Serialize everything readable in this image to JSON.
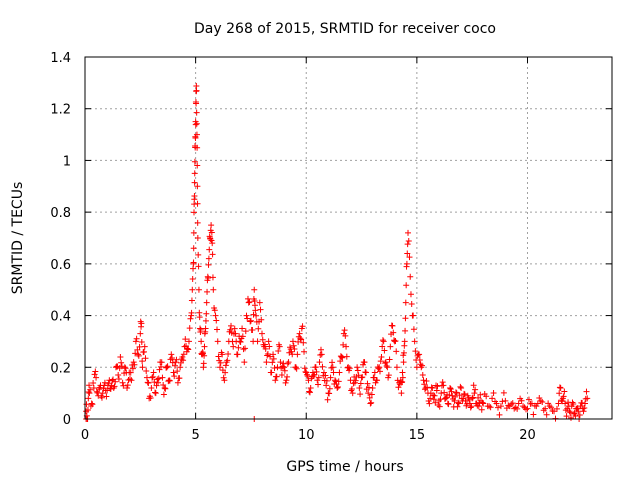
{
  "chart_data": {
    "type": "scatter",
    "title": "Day 268 of 2015, SRMTID for receiver coco",
    "xlabel": "GPS time / hours",
    "ylabel": "SRMTID / TECUs",
    "xlim": [
      0,
      23.82
    ],
    "ylim": [
      0,
      1.4
    ],
    "x_ticks": [
      0,
      5,
      10,
      15,
      20
    ],
    "x_tick_labels": [
      "0",
      "5",
      "10",
      "15",
      "20"
    ],
    "y_ticks": [
      0,
      0.2,
      0.4,
      0.6,
      0.8,
      1.0,
      1.2,
      1.4
    ],
    "y_tick_labels": [
      "0",
      "0.2",
      "0.4",
      "0.6",
      "0.8",
      "1",
      "1.2",
      "1.4"
    ],
    "grid": true,
    "marker": "plus",
    "color": "#ff0000",
    "series": [
      {
        "name": "SRMTID",
        "x": [
          0.05,
          0.1,
          0.15,
          0.2,
          0.3,
          0.4,
          0.5,
          0.6,
          0.7,
          0.8,
          0.9,
          1.0,
          1.1,
          1.2,
          1.3,
          1.4,
          1.5,
          1.6,
          1.7,
          1.8,
          1.9,
          2.0,
          2.1,
          2.2,
          2.3,
          2.4,
          2.5,
          2.55,
          2.6,
          2.7,
          2.8,
          2.9,
          3.0,
          3.1,
          3.2,
          3.3,
          3.4,
          3.5,
          3.6,
          3.7,
          3.8,
          3.9,
          4.0,
          4.1,
          4.2,
          4.3,
          4.4,
          4.5,
          4.6,
          4.7,
          4.8,
          4.85,
          4.9,
          4.92,
          4.94,
          4.96,
          4.98,
          5.0,
          5.02,
          5.04,
          5.06,
          5.08,
          5.1,
          5.15,
          5.2,
          5.25,
          5.3,
          5.35,
          5.4,
          5.45,
          5.5,
          5.55,
          5.6,
          5.65,
          5.7,
          5.75,
          5.8,
          5.9,
          6.0,
          6.1,
          6.2,
          6.3,
          6.4,
          6.5,
          6.6,
          6.7,
          6.8,
          6.9,
          7.0,
          7.1,
          7.2,
          7.3,
          7.4,
          7.5,
          7.6,
          7.65,
          7.7,
          7.8,
          7.9,
          8.0,
          8.1,
          8.2,
          8.3,
          8.4,
          8.5,
          8.6,
          8.7,
          8.8,
          8.9,
          9.0,
          9.1,
          9.2,
          9.3,
          9.4,
          9.5,
          9.6,
          9.7,
          9.8,
          9.9,
          10.0,
          10.1,
          10.2,
          10.3,
          10.4,
          10.5,
          10.6,
          10.7,
          10.8,
          10.9,
          11.0,
          11.1,
          11.2,
          11.3,
          11.4,
          11.5,
          11.6,
          11.7,
          11.8,
          11.9,
          12.0,
          12.1,
          12.2,
          12.3,
          12.4,
          12.5,
          12.6,
          12.7,
          12.8,
          12.9,
          13.0,
          13.1,
          13.2,
          13.3,
          13.4,
          13.5,
          13.6,
          13.7,
          13.8,
          13.9,
          14.0,
          14.1,
          14.2,
          14.3,
          14.35,
          14.4,
          14.45,
          14.5,
          14.55,
          14.6,
          14.7,
          14.8,
          14.9,
          15.0,
          15.1,
          15.2,
          15.3,
          15.4,
          15.5,
          15.6,
          15.7,
          15.8,
          15.9,
          16.0,
          16.1,
          16.2,
          16.3,
          16.4,
          16.5,
          16.6,
          16.7,
          16.8,
          16.9,
          17.0,
          17.1,
          17.2,
          17.3,
          17.4,
          17.5,
          17.6,
          17.7,
          17.8,
          17.9,
          18.0,
          18.2,
          18.4,
          18.6,
          18.8,
          19.0,
          19.2,
          19.4,
          19.6,
          19.8,
          20.0,
          20.2,
          20.4,
          20.6,
          20.8,
          21.0,
          21.2,
          21.4,
          21.5,
          21.6,
          21.7,
          21.8,
          21.9,
          22.0,
          22.1,
          22.2,
          22.3,
          22.4,
          22.5,
          22.6,
          22.7
        ],
        "y": [
          0.03,
          0.0,
          0.08,
          0.1,
          0.06,
          0.12,
          0.16,
          0.09,
          0.13,
          0.1,
          0.14,
          0.11,
          0.15,
          0.13,
          0.12,
          0.2,
          0.17,
          0.24,
          0.14,
          0.2,
          0.12,
          0.18,
          0.15,
          0.22,
          0.3,
          0.25,
          0.33,
          0.37,
          0.2,
          0.28,
          0.16,
          0.08,
          0.12,
          0.18,
          0.1,
          0.14,
          0.22,
          0.16,
          0.12,
          0.2,
          0.15,
          0.25,
          0.18,
          0.22,
          0.14,
          0.2,
          0.24,
          0.28,
          0.26,
          0.3,
          0.4,
          0.5,
          0.6,
          0.72,
          0.85,
          0.95,
          1.05,
          1.15,
          1.22,
          1.27,
          1.1,
          0.9,
          0.7,
          0.5,
          0.35,
          0.3,
          0.25,
          0.2,
          0.28,
          0.35,
          0.45,
          0.55,
          0.62,
          0.7,
          0.75,
          0.68,
          0.5,
          0.4,
          0.3,
          0.2,
          0.25,
          0.15,
          0.22,
          0.3,
          0.36,
          0.28,
          0.33,
          0.25,
          0.3,
          0.35,
          0.22,
          0.4,
          0.45,
          0.38,
          0.3,
          0.5,
          0.42,
          0.3,
          0.45,
          0.33,
          0.28,
          0.22,
          0.3,
          0.18,
          0.25,
          0.15,
          0.2,
          0.28,
          0.17,
          0.2,
          0.15,
          0.22,
          0.27,
          0.3,
          0.2,
          0.25,
          0.33,
          0.35,
          0.26,
          0.18,
          0.15,
          0.12,
          0.18,
          0.2,
          0.15,
          0.22,
          0.25,
          0.18,
          0.13,
          0.1,
          0.16,
          0.2,
          0.15,
          0.12,
          0.18,
          0.24,
          0.33,
          0.28,
          0.2,
          0.15,
          0.1,
          0.14,
          0.2,
          0.12,
          0.16,
          0.22,
          0.18,
          0.1,
          0.06,
          0.12,
          0.18,
          0.15,
          0.2,
          0.24,
          0.3,
          0.22,
          0.16,
          0.28,
          0.36,
          0.3,
          0.2,
          0.14,
          0.1,
          0.18,
          0.22,
          0.3,
          0.45,
          0.6,
          0.72,
          0.55,
          0.4,
          0.3,
          0.2,
          0.25,
          0.2,
          0.15,
          0.12,
          0.1,
          0.08,
          0.12,
          0.09,
          0.11,
          0.07,
          0.1,
          0.13,
          0.08,
          0.06,
          0.12,
          0.09,
          0.07,
          0.1,
          0.06,
          0.12,
          0.08,
          0.07,
          0.09,
          0.06,
          0.08,
          0.1,
          0.06,
          0.05,
          0.07,
          0.06,
          0.05,
          0.08,
          0.06,
          0.05,
          0.07,
          0.05,
          0.04,
          0.06,
          0.05,
          0.04,
          0.06,
          0.05,
          0.07,
          0.04,
          0.05,
          0.03,
          0.06,
          0.12,
          0.08,
          0.06,
          0.04,
          0.03,
          0.05,
          0.02,
          0.04,
          0.03,
          0.05,
          0.04,
          0.06,
          0.08
        ]
      }
    ],
    "baseline_points": [
      {
        "x": 0.05,
        "y": 0.0
      },
      {
        "x": 7.65,
        "y": 0.0
      }
    ]
  }
}
